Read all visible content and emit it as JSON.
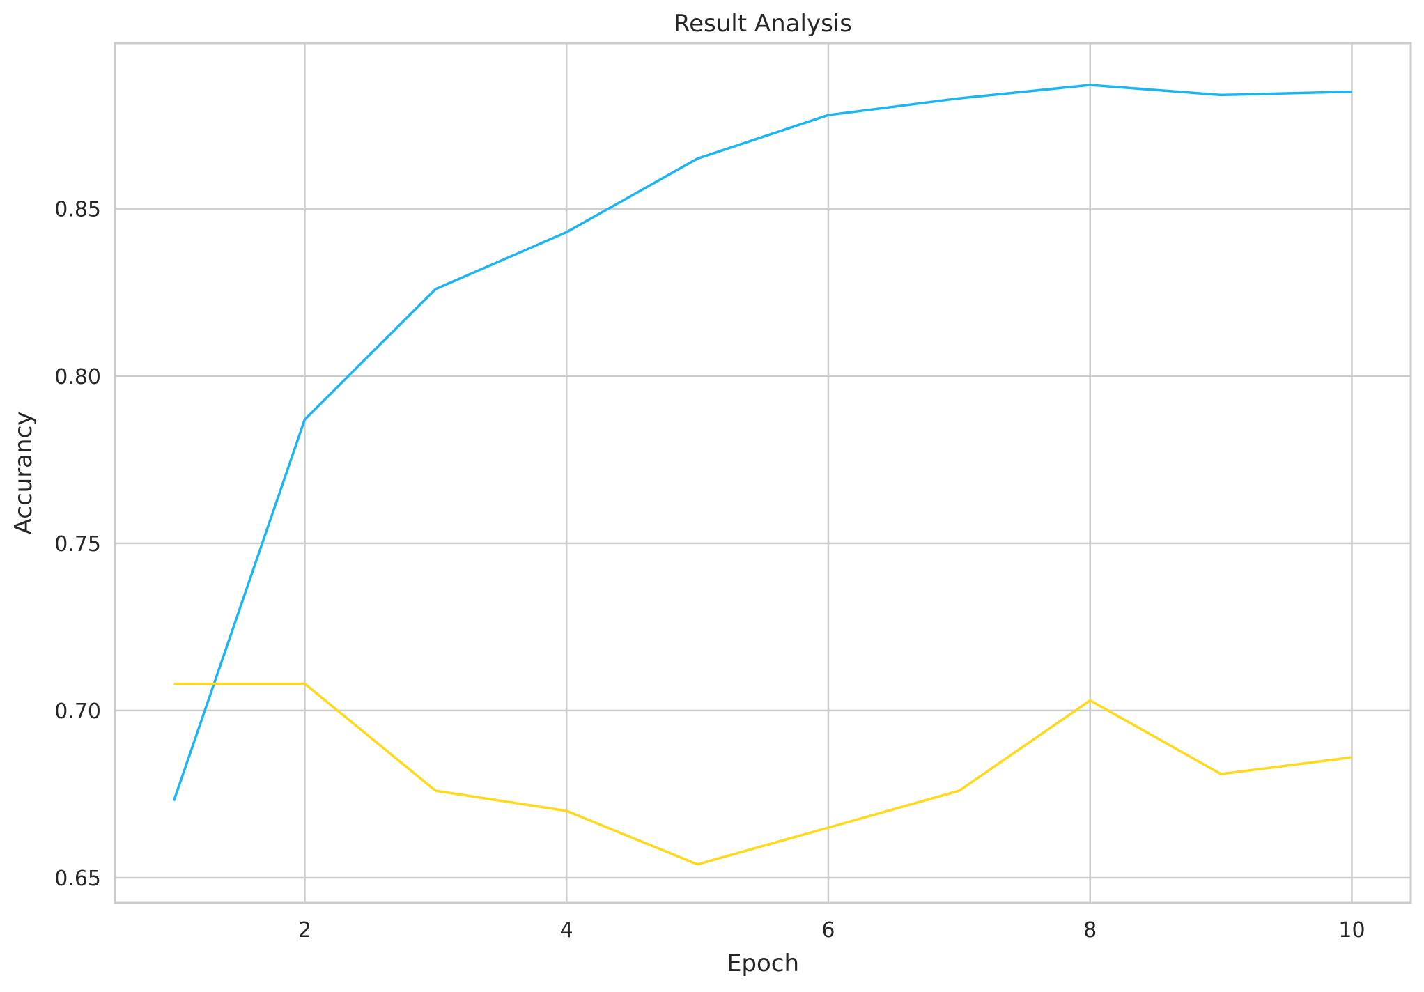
{
  "chart_data": {
    "type": "line",
    "title": "Result Analysis",
    "xlabel": "Epoch",
    "ylabel": "Accurancy",
    "xlim": [
      0.55,
      10.45
    ],
    "ylim": [
      0.6425,
      0.8995
    ],
    "xticks": [
      2,
      4,
      6,
      8,
      10
    ],
    "xtick_labels": [
      "2",
      "4",
      "6",
      "8",
      "10"
    ],
    "yticks": [
      0.65,
      0.7,
      0.75,
      0.8,
      0.85
    ],
    "ytick_labels": [
      "0.65",
      "0.70",
      "0.75",
      "0.80",
      "0.85"
    ],
    "grid": true,
    "legend": "none",
    "x": [
      1,
      2,
      3,
      4,
      5,
      6,
      7,
      8,
      9,
      10
    ],
    "series": [
      {
        "color": "#1bb6f2",
        "values": [
          0.673,
          0.787,
          0.826,
          0.843,
          0.865,
          0.878,
          0.883,
          0.887,
          0.884,
          0.885
        ]
      },
      {
        "color": "#ffd91a",
        "values": [
          0.708,
          0.708,
          0.676,
          0.67,
          0.654,
          0.665,
          0.676,
          0.703,
          0.681,
          0.686
        ]
      }
    ]
  }
}
